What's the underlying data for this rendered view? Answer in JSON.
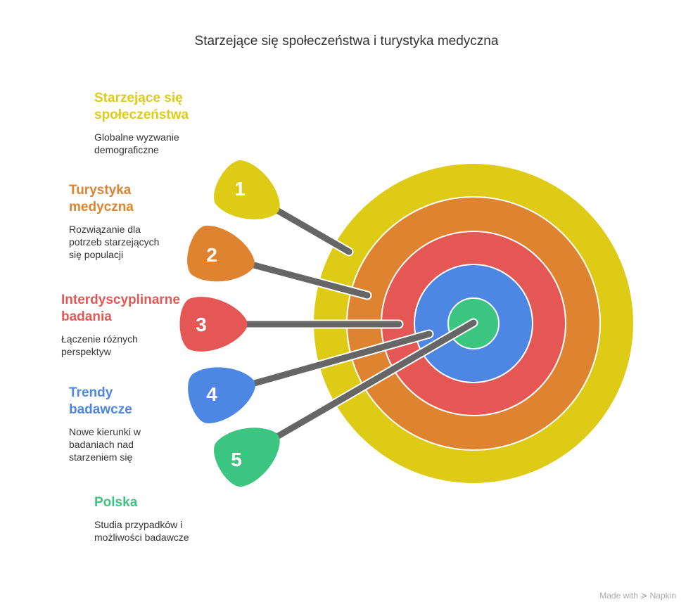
{
  "title": "Starzejące się społeczeństwa i turystyka medyczna",
  "items": [
    {
      "number": "1",
      "heading": "Starzejące się społeczeństwa",
      "description": "Globalne wyzwanie demograficzne",
      "color": "#DDCB16"
    },
    {
      "number": "2",
      "heading": "Turystyka medyczna",
      "description": "Rozwiązanie dla potrzeb starzejących się populacji",
      "color": "#DE8430"
    },
    {
      "number": "3",
      "heading": "Interdyscyplinarne badania",
      "description": "Łączenie różnych perspektyw",
      "color": "#E55754"
    },
    {
      "number": "4",
      "heading": "Trendy badawcze",
      "description": "Nowe kierunki w badaniach nad starzeniem się",
      "color": "#4D86E3"
    },
    {
      "number": "5",
      "heading": "Polska",
      "description": "Studia przypadków i możliwości badawcze",
      "color": "#3CC481"
    }
  ],
  "footer": "Made with ≽ Napkin"
}
